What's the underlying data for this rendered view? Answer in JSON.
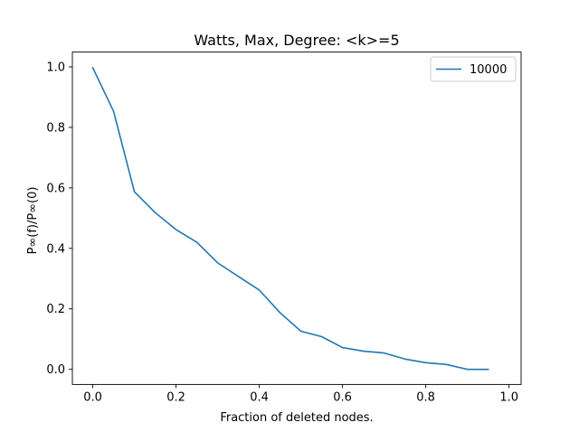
{
  "chart_data": {
    "type": "line",
    "title": "Watts, Max, Degree: <k>=5",
    "xlabel": "Fraction of deleted nodes.",
    "ylabel": "P∞(f)/P∞(0)",
    "xlim": [
      -0.049,
      1.029
    ],
    "ylim": [
      -0.05,
      1.049
    ],
    "xticks": [
      0.0,
      0.2,
      0.4,
      0.6,
      0.8,
      1.0
    ],
    "xtick_labels": [
      "0.0",
      "0.2",
      "0.4",
      "0.6",
      "0.8",
      "1.0"
    ],
    "yticks": [
      0.0,
      0.2,
      0.4,
      0.6,
      0.8,
      1.0
    ],
    "ytick_labels": [
      "0.0",
      "0.2",
      "0.4",
      "0.6",
      "0.8",
      "1.0"
    ],
    "grid": false,
    "legend_position": "top-right",
    "series": [
      {
        "name": "10000",
        "color": "#1f77b4",
        "x": [
          0.0,
          0.05,
          0.1,
          0.15,
          0.2,
          0.25,
          0.3,
          0.35,
          0.4,
          0.45,
          0.5,
          0.55,
          0.6,
          0.65,
          0.7,
          0.75,
          0.8,
          0.85,
          0.9,
          0.95
        ],
        "y": [
          0.997,
          0.853,
          0.587,
          0.518,
          0.462,
          0.42,
          0.352,
          0.307,
          0.262,
          0.187,
          0.126,
          0.108,
          0.072,
          0.06,
          0.054,
          0.034,
          0.022,
          0.016,
          0.0,
          0.0
        ]
      }
    ]
  }
}
